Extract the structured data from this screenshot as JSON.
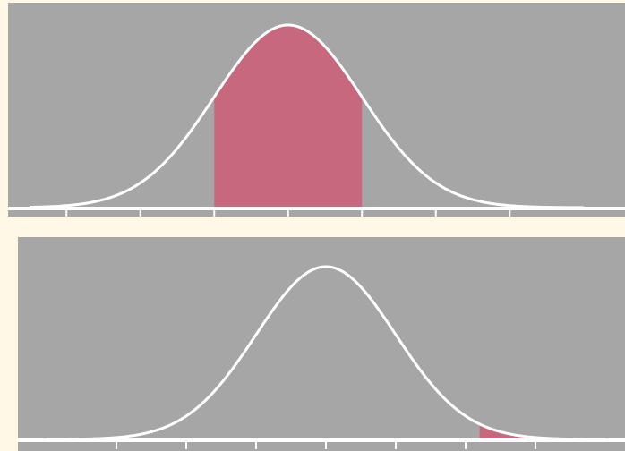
{
  "chart_data": [
    {
      "type": "area",
      "distribution": "normal",
      "mean": 0,
      "sd": 1,
      "xlim": [
        -3.5,
        4.0
      ],
      "x_ticks": [
        -3,
        -2,
        -1,
        0,
        1,
        2,
        3
      ],
      "shaded_regions": [
        [
          -1,
          1
        ]
      ],
      "tick_labels_shown": false,
      "title": "",
      "xlabel": "",
      "ylabel": ""
    },
    {
      "type": "area",
      "distribution": "normal",
      "mean": 0,
      "sd": 1,
      "xlim": [
        -4.0,
        4.0
      ],
      "x_ticks": [
        -3,
        -2,
        -1,
        0,
        1,
        2,
        3
      ],
      "shaded_regions": [
        [
          2.2,
          3.0
        ]
      ],
      "tick_labels_shown": false,
      "title": "",
      "xlabel": "",
      "ylabel": ""
    }
  ],
  "colors": {
    "page_background": "#fff8e7",
    "panel_background": "#a6a6a6",
    "curve": "#ffffff",
    "axis": "#ffffff",
    "shade": "#c8687e"
  }
}
